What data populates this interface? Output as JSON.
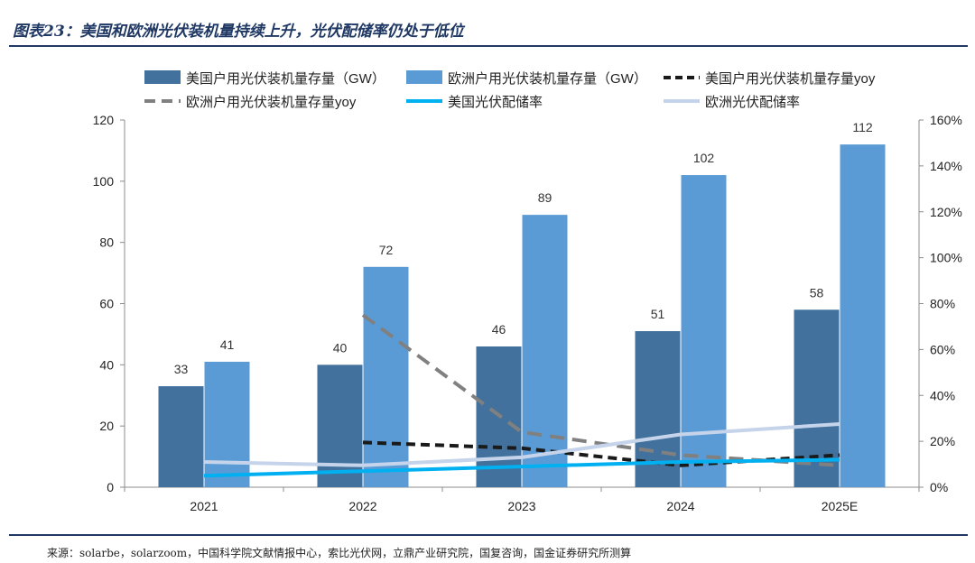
{
  "figure": {
    "title": "图表23：美国和欧洲光伏装机量持续上升，光伏配储率仍处于低位",
    "source": "来源：solarbe，solarzoom，中国科学院文献情报中心，索比光伏网，立鼎产业研究院，国复咨询，国金证券研究所测算"
  },
  "chart_data": {
    "type": "bar",
    "categories": [
      "2021",
      "2022",
      "2023",
      "2024",
      "2025E"
    ],
    "y_left": {
      "min": 0,
      "max": 120,
      "ticks": [
        "0",
        "20",
        "40",
        "60",
        "80",
        "100",
        "120"
      ]
    },
    "y_right": {
      "min": 0,
      "max": 160,
      "ticks": [
        "0%",
        "20%",
        "40%",
        "60%",
        "80%",
        "100%",
        "120%",
        "140%",
        "160%"
      ]
    },
    "bar_series": [
      {
        "name": "美国户用光伏装机量存量（GW）",
        "color": "#41719c",
        "values": [
          33,
          40,
          46,
          51,
          58
        ]
      },
      {
        "name": "欧洲户用光伏装机量存量（GW）",
        "color": "#5b9bd5",
        "values": [
          41,
          72,
          89,
          102,
          112
        ]
      }
    ],
    "line_series": [
      {
        "name": "美国户用光伏装机量存量yoy",
        "color": "#1a1a1a",
        "dash": true,
        "values_pct": [
          null,
          19.5,
          17,
          9.5,
          14
        ]
      },
      {
        "name": "欧洲户用光伏装机量存量yoy",
        "color": "#808080",
        "dash": true,
        "values_pct": [
          null,
          75,
          24,
          14,
          9.5
        ]
      },
      {
        "name": "美国光伏配储率",
        "color": "#00b0f0",
        "dash": false,
        "values_pct": [
          5,
          7,
          9,
          11,
          12
        ]
      },
      {
        "name": "欧洲光伏配储率",
        "color": "#c5d4ea",
        "dash": false,
        "values_pct": [
          11,
          9.5,
          13,
          23,
          27.5
        ]
      }
    ],
    "legend_position": "top",
    "grid": false
  }
}
